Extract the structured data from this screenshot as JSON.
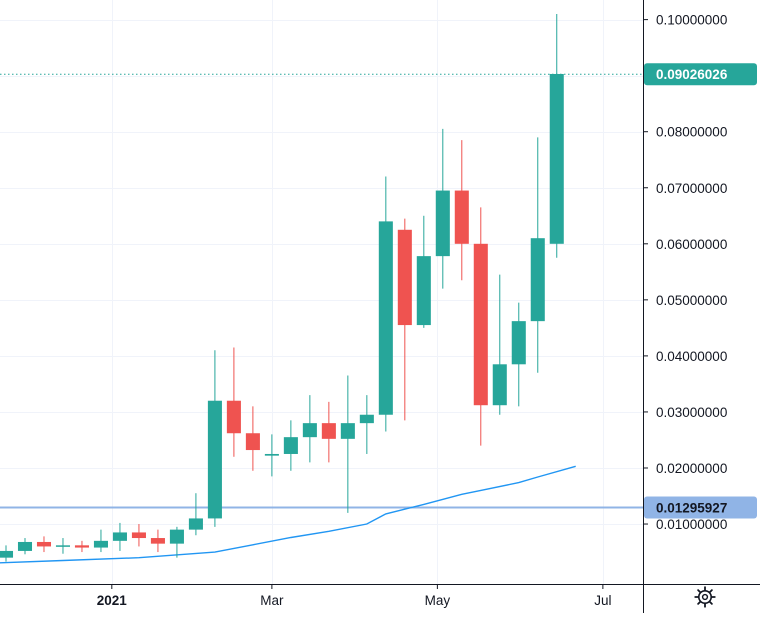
{
  "chart_data": {
    "type": "candlestick",
    "interval": "weekly",
    "colors": {
      "up": "#26a69a",
      "down": "#ef5350",
      "moving_average": "#2196f3",
      "horizontal_line": "#90b4e6",
      "grid": "#f0f3fa",
      "axis_text": "#131722"
    },
    "y_axis": {
      "range": [
        -0.0007,
        0.1035
      ],
      "ticks": [
        "0.10000000",
        "0.09000000",
        "0.08000000",
        "0.07000000",
        "0.06000000",
        "0.05000000",
        "0.04000000",
        "0.03000000",
        "0.02000000",
        "0.01000000"
      ],
      "hidden_ticks": [
        "0.09000000"
      ]
    },
    "x_axis": {
      "start": "2020-11-23",
      "end": "2021-07-18",
      "ticks": [
        {
          "label": "2021",
          "date": "2021-01-01",
          "bold": true
        },
        {
          "label": "Mar",
          "date": "2021-03-01",
          "bold": false
        },
        {
          "label": "May",
          "date": "2021-05-01",
          "bold": false
        },
        {
          "label": "Jul",
          "date": "2021-07-01",
          "bold": false
        }
      ]
    },
    "candles": [
      {
        "date": "2020-11-23",
        "open": 0.004,
        "high": 0.0062,
        "low": 0.0033,
        "close": 0.0052
      },
      {
        "date": "2020-11-30",
        "open": 0.0052,
        "high": 0.0075,
        "low": 0.0046,
        "close": 0.0068
      },
      {
        "date": "2020-12-07",
        "open": 0.0068,
        "high": 0.0078,
        "low": 0.005,
        "close": 0.006
      },
      {
        "date": "2020-12-14",
        "open": 0.006,
        "high": 0.0075,
        "low": 0.0047,
        "close": 0.0062
      },
      {
        "date": "2020-12-21",
        "open": 0.0062,
        "high": 0.007,
        "low": 0.005,
        "close": 0.0058
      },
      {
        "date": "2020-12-28",
        "open": 0.0058,
        "high": 0.009,
        "low": 0.005,
        "close": 0.007
      },
      {
        "date": "2021-01-04",
        "open": 0.007,
        "high": 0.0102,
        "low": 0.0052,
        "close": 0.0085
      },
      {
        "date": "2021-01-11",
        "open": 0.0085,
        "high": 0.01,
        "low": 0.006,
        "close": 0.0075
      },
      {
        "date": "2021-01-18",
        "open": 0.0075,
        "high": 0.009,
        "low": 0.005,
        "close": 0.0065
      },
      {
        "date": "2021-01-25",
        "open": 0.0065,
        "high": 0.0095,
        "low": 0.004,
        "close": 0.009
      },
      {
        "date": "2021-02-01",
        "open": 0.009,
        "high": 0.0155,
        "low": 0.008,
        "close": 0.011
      },
      {
        "date": "2021-02-08",
        "open": 0.011,
        "high": 0.041,
        "low": 0.0095,
        "close": 0.032
      },
      {
        "date": "2021-02-15",
        "open": 0.032,
        "high": 0.0415,
        "low": 0.022,
        "close": 0.0262
      },
      {
        "date": "2021-02-22",
        "open": 0.0262,
        "high": 0.031,
        "low": 0.0195,
        "close": 0.0232
      },
      {
        "date": "2021-03-01",
        "open": 0.0222,
        "high": 0.026,
        "low": 0.0185,
        "close": 0.0225
      },
      {
        "date": "2021-03-08",
        "open": 0.0225,
        "high": 0.0285,
        "low": 0.0195,
        "close": 0.0255
      },
      {
        "date": "2021-03-15",
        "open": 0.0255,
        "high": 0.033,
        "low": 0.021,
        "close": 0.028
      },
      {
        "date": "2021-03-22",
        "open": 0.028,
        "high": 0.0318,
        "low": 0.021,
        "close": 0.0252
      },
      {
        "date": "2021-03-29",
        "open": 0.0252,
        "high": 0.0365,
        "low": 0.012,
        "close": 0.028
      },
      {
        "date": "2021-04-05",
        "open": 0.028,
        "high": 0.033,
        "low": 0.0225,
        "close": 0.0295
      },
      {
        "date": "2021-04-12",
        "open": 0.0295,
        "high": 0.072,
        "low": 0.0265,
        "close": 0.064
      },
      {
        "date": "2021-04-19",
        "open": 0.0625,
        "high": 0.0645,
        "low": 0.0285,
        "close": 0.0455
      },
      {
        "date": "2021-04-26",
        "open": 0.0455,
        "high": 0.065,
        "low": 0.045,
        "close": 0.0578
      },
      {
        "date": "2021-05-03",
        "open": 0.0578,
        "high": 0.0805,
        "low": 0.052,
        "close": 0.0695
      },
      {
        "date": "2021-05-10",
        "open": 0.0695,
        "high": 0.0785,
        "low": 0.0535,
        "close": 0.06
      },
      {
        "date": "2021-05-17",
        "open": 0.06,
        "high": 0.0665,
        "low": 0.024,
        "close": 0.0312
      },
      {
        "date": "2021-05-24",
        "open": 0.0312,
        "high": 0.0545,
        "low": 0.0295,
        "close": 0.0385
      },
      {
        "date": "2021-05-31",
        "open": 0.0385,
        "high": 0.0495,
        "low": 0.031,
        "close": 0.0462
      },
      {
        "date": "2021-06-07",
        "open": 0.0462,
        "high": 0.079,
        "low": 0.037,
        "close": 0.061
      },
      {
        "date": "2021-06-14",
        "open": 0.06,
        "high": 0.101,
        "low": 0.0575,
        "close": 0.0903
      }
    ],
    "moving_average": [
      {
        "date": "2020-11-16",
        "value": 0.003
      },
      {
        "date": "2020-12-14",
        "value": 0.0035
      },
      {
        "date": "2021-01-11",
        "value": 0.004
      },
      {
        "date": "2021-02-08",
        "value": 0.005
      },
      {
        "date": "2021-02-22",
        "value": 0.0063
      },
      {
        "date": "2021-03-08",
        "value": 0.0076
      },
      {
        "date": "2021-03-22",
        "value": 0.0087
      },
      {
        "date": "2021-04-05",
        "value": 0.01
      },
      {
        "date": "2021-04-12",
        "value": 0.0118
      },
      {
        "date": "2021-04-26",
        "value": 0.0135
      },
      {
        "date": "2021-05-10",
        "value": 0.0153
      },
      {
        "date": "2021-05-17",
        "value": 0.016
      },
      {
        "date": "2021-05-31",
        "value": 0.0174
      },
      {
        "date": "2021-06-07",
        "value": 0.0184
      },
      {
        "date": "2021-06-21",
        "value": 0.0203
      }
    ],
    "current_price": {
      "label": "0.09026026",
      "value": 0.09026026
    },
    "horizontal_line": {
      "label": "0.01295927",
      "value": 0.01295927
    }
  },
  "toolbar": {
    "settings_icon": "gear-icon"
  }
}
